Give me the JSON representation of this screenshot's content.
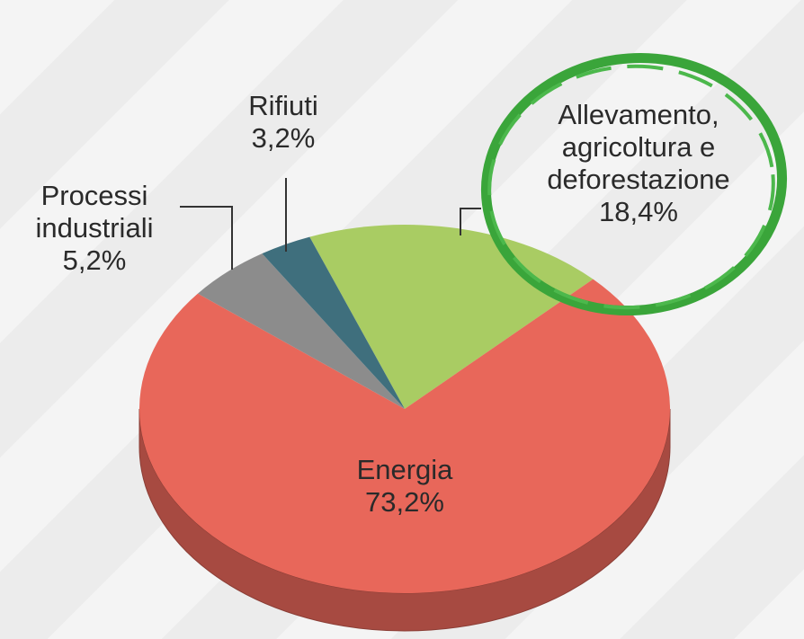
{
  "chart_data": {
    "type": "pie",
    "categories": [
      "Allevamento, agricoltura e deforestazione",
      "Energia",
      "Processi industriali",
      "Rifiuti"
    ],
    "values": [
      18.4,
      73.2,
      5.2,
      3.2
    ],
    "value_labels": [
      "18,4%",
      "73,2%",
      "5,2%",
      "3,2%"
    ],
    "colors": [
      "#a9cc63",
      "#e8675a",
      "#8c8c8c",
      "#3f6f7d"
    ]
  }
}
